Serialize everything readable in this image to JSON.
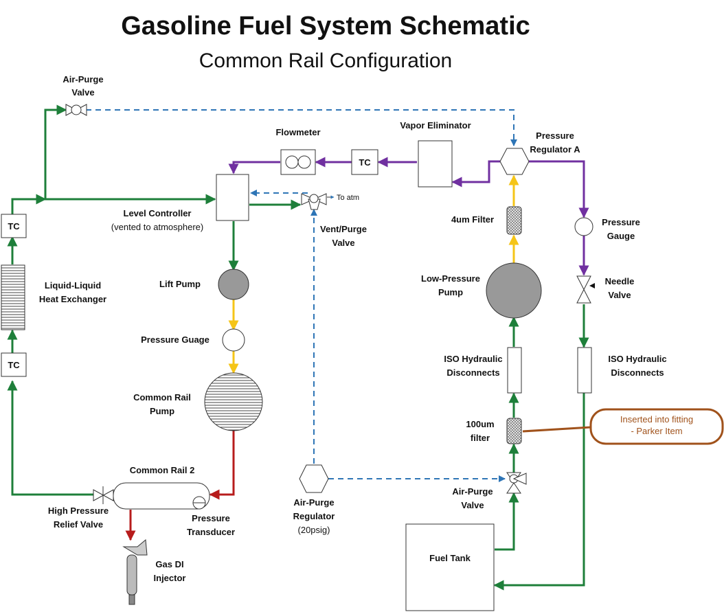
{
  "title": "Gasoline Fuel System Schematic",
  "subtitle": "Common Rail Configuration",
  "colors": {
    "green": "#1e7f3a",
    "purple": "#7030a0",
    "yellow": "#f5c518",
    "red": "#b71c1c",
    "blue_dashed": "#2e75b6",
    "callout": "#a0521b"
  },
  "labels": {
    "air_purge_valve_top": [
      "Air-Purge",
      "Valve"
    ],
    "flowmeter": "Flowmeter",
    "vapor_eliminator": "Vapor Eliminator",
    "pressure_regulator_a": [
      "Pressure",
      "Regulator A"
    ],
    "tc": "TC",
    "to_atm": "To atm",
    "level_controller": "Level Controller",
    "level_controller_note": "(vented to atmosphere)",
    "vent_purge_valve": [
      "Vent/Purge",
      "Valve"
    ],
    "filter_4um": "4um Filter",
    "pressure_gauge": [
      "Pressure",
      "Gauge"
    ],
    "liquid_heat_exchanger": [
      "Liquid-Liquid",
      "Heat Exchanger"
    ],
    "lift_pump": "Lift Pump",
    "low_pressure_pump": [
      "Low-Pressure",
      "Pump"
    ],
    "needle_valve": [
      "Needle",
      "Valve"
    ],
    "pressure_guage": "Pressure Guage",
    "iso_left": [
      "ISO Hydraulic",
      "Disconnects"
    ],
    "iso_right": [
      "ISO Hydraulic",
      "Disconnects"
    ],
    "common_rail_pump": [
      "Common Rail",
      "Pump"
    ],
    "filter_100um": [
      "100um",
      "filter"
    ],
    "callout": [
      "Inserted into fitting",
      "- Parker Item"
    ],
    "common_rail_2": "Common Rail 2",
    "air_purge_valve_bottom": [
      "Air-Purge",
      "Valve"
    ],
    "high_pressure_relief": [
      "High Pressure",
      "Relief Valve"
    ],
    "pressure_transducer": [
      "Pressure",
      "Transducer"
    ],
    "air_purge_regulator": [
      "Air-Purge",
      "Regulator"
    ],
    "air_purge_regulator_note": "(20psig)",
    "gas_di_injector": [
      "Gas DI",
      "Injector"
    ],
    "fuel_tank": "Fuel Tank"
  }
}
